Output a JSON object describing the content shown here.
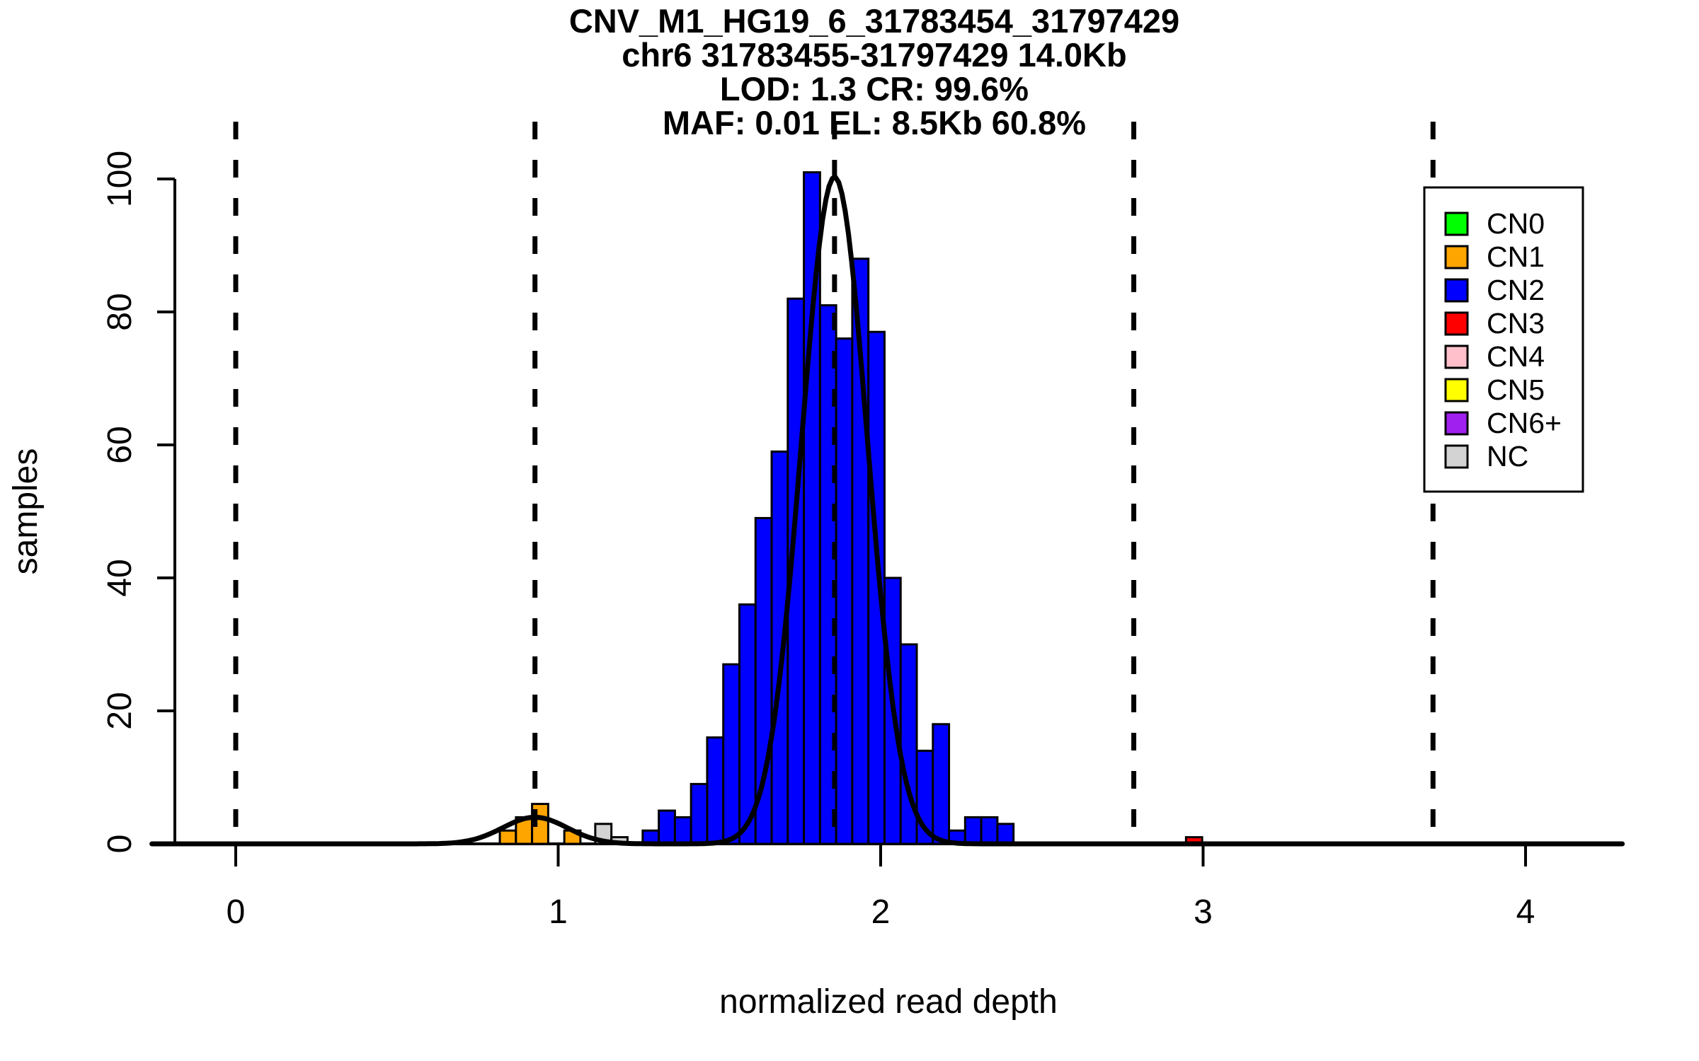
{
  "title": {
    "line1": "CNV_M1_HG19_6_31783454_31797429",
    "line2": "chr6 31783455-31797429 14.0Kb",
    "line3": "LOD: 1.3 CR: 99.6%",
    "line4": "MAF: 0.01 EL: 8.5Kb 60.8%"
  },
  "axes": {
    "xlabel": "normalized read depth",
    "ylabel": "samples",
    "x_ticks": [
      "0",
      "1",
      "2",
      "3",
      "4"
    ],
    "y_ticks": [
      "0",
      "20",
      "40",
      "60",
      "80",
      "100"
    ]
  },
  "legend": {
    "entries": [
      {
        "label": "CN0",
        "color": "#00FF00"
      },
      {
        "label": "CN1",
        "color": "#FFA500"
      },
      {
        "label": "CN2",
        "color": "#0000FF"
      },
      {
        "label": "CN3",
        "color": "#FF0000"
      },
      {
        "label": "CN4",
        "color": "#FFC0CB"
      },
      {
        "label": "CN5",
        "color": "#FFFF00"
      },
      {
        "label": "CN6+",
        "color": "#A020F0"
      },
      {
        "label": "NC",
        "color": "#D3D3D3"
      }
    ]
  },
  "chart_data": {
    "type": "bar",
    "subtype": "histogram-with-gaussian-fit",
    "title": "CNV_M1_HG19_6_31783454_31797429",
    "subtitle_lines": [
      "chr6 31783455-31797429 14.0Kb",
      "LOD: 1.3 CR: 99.6%",
      "MAF: 0.01 EL: 8.5Kb 60.8%"
    ],
    "xlabel": "normalized read depth",
    "ylabel": "samples",
    "xlim": [
      -0.26,
      4.3
    ],
    "ylim": [
      0,
      100
    ],
    "x_tick_values": [
      0,
      1,
      2,
      3,
      4
    ],
    "y_tick_values": [
      0,
      20,
      40,
      60,
      80,
      100
    ],
    "bin_width": 0.05,
    "series": [
      {
        "name": "CN1",
        "color": "#FFA500",
        "bars": [
          [
            0.819,
            2
          ],
          [
            0.869,
            4
          ],
          [
            0.919,
            6
          ],
          [
            1.019,
            2
          ]
        ]
      },
      {
        "name": "NC",
        "color": "#D3D3D3",
        "bars": [
          [
            1.115,
            3
          ],
          [
            1.165,
            1
          ]
        ]
      },
      {
        "name": "CN2",
        "color": "#0000FF",
        "bars": [
          [
            1.262,
            2
          ],
          [
            1.312,
            5
          ],
          [
            1.362,
            4
          ],
          [
            1.412,
            9
          ],
          [
            1.462,
            16
          ],
          [
            1.512,
            27
          ],
          [
            1.562,
            36
          ],
          [
            1.612,
            49
          ],
          [
            1.662,
            59
          ],
          [
            1.712,
            82
          ],
          [
            1.762,
            101
          ],
          [
            1.812,
            81
          ],
          [
            1.862,
            76
          ],
          [
            1.912,
            88
          ],
          [
            1.962,
            77
          ],
          [
            2.012,
            40
          ],
          [
            2.062,
            30
          ],
          [
            2.112,
            14
          ],
          [
            2.162,
            18
          ],
          [
            2.212,
            2
          ],
          [
            2.262,
            4
          ],
          [
            2.312,
            4
          ],
          [
            2.362,
            3
          ]
        ]
      },
      {
        "name": "CN3",
        "color": "#FF0000",
        "bars": [
          [
            2.947,
            1
          ]
        ]
      }
    ],
    "cluster_mean_lines_x": [
      0,
      0.928,
      1.857,
      2.785,
      3.713
    ],
    "fit_curves": [
      {
        "name": "CN1-fit",
        "mu": 0.928,
        "sigma": 0.1,
        "amp": 4.0
      },
      {
        "name": "CN2-fit",
        "mu": 1.857,
        "sigma": 0.102,
        "amp": 100.3
      }
    ],
    "legend_position": "top-right",
    "grid": false
  }
}
